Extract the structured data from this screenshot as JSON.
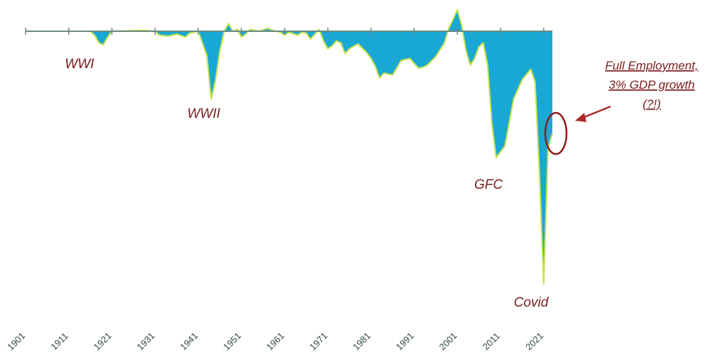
{
  "chart_data": {
    "type": "area",
    "x_ticks": [
      "1901",
      "1911",
      "1921",
      "1931",
      "1941",
      "1951",
      "1961",
      "1971",
      "1981",
      "1991",
      "2001",
      "2011",
      "2021"
    ],
    "xlim": [
      1901,
      2023
    ],
    "ylim": [
      -27,
      3.2
    ],
    "fill_color": "#19a8d4",
    "edge_color": "#c8e24a",
    "axis_color": "#6b8a86",
    "series": [
      {
        "x": [
          1901,
          1916,
          1917,
          1918,
          1919,
          1920,
          1921,
          1928,
          1931,
          1932,
          1934,
          1936,
          1938,
          1939,
          1941,
          1943,
          1944,
          1945,
          1946,
          1947,
          1948,
          1949,
          1950,
          1951,
          1952,
          1953,
          1955,
          1957,
          1959,
          1960,
          1961,
          1962,
          1964,
          1965,
          1966,
          1967,
          1968,
          1969,
          1970,
          1971,
          1972,
          1973,
          1974,
          1975,
          1976,
          1978,
          1980,
          1981,
          1982,
          1983,
          1984,
          1986,
          1988,
          1990,
          1992,
          1993,
          1994,
          1996,
          1998,
          1999,
          2000,
          2001,
          2002,
          2003,
          2004,
          2005,
          2006,
          2007,
          2008,
          2009,
          2010,
          2012,
          2014,
          2016,
          2018,
          2019,
          2020,
          2021,
          2022,
          2023
        ],
        "y": [
          0,
          0,
          -0.4,
          -1.2,
          -1.4,
          -0.6,
          0,
          0.1,
          0,
          -0.4,
          -0.5,
          -0.3,
          -0.6,
          -0.2,
          0,
          -2.5,
          -7,
          -5,
          -2,
          0,
          0.8,
          0,
          0.2,
          -0.6,
          -0.3,
          0.2,
          0,
          0.3,
          0,
          -0.1,
          -0.4,
          -0.1,
          -0.4,
          -0.1,
          -0.2,
          -0.8,
          -0.3,
          0.2,
          -1,
          -1.8,
          -1.5,
          -1,
          -1.2,
          -2.3,
          -1.8,
          -1.3,
          -2.2,
          -2.8,
          -3.6,
          -4.8,
          -4.3,
          -4.5,
          -3,
          -2.8,
          -3.8,
          -3.7,
          -3.5,
          -2.6,
          -1.2,
          0.3,
          1.2,
          2.2,
          0.6,
          -2,
          -3.5,
          -2.8,
          -1.6,
          -1.2,
          -3.5,
          -9.5,
          -13,
          -11.8,
          -7,
          -5,
          -3.9,
          -5.2,
          -14.5,
          -26,
          -12,
          -10.5
        ]
      }
    ],
    "annotations": [
      {
        "text": "WWI"
      },
      {
        "text": "WWII"
      },
      {
        "text": "GFC"
      },
      {
        "text": "Covid"
      }
    ],
    "note": {
      "lines": [
        "Full Employment,",
        "3% GDP growth",
        "(?!)"
      ]
    }
  }
}
